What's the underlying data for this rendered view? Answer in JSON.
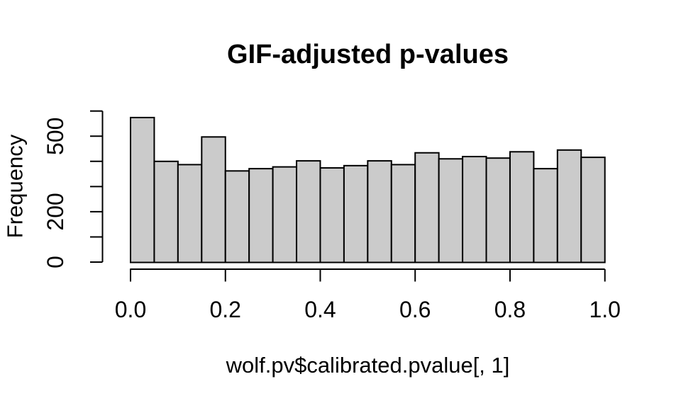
{
  "figure": {
    "background": "#ffffff"
  },
  "chart_data": {
    "type": "bar",
    "subtype": "histogram",
    "title": "GIF-adjusted p-values",
    "xlabel": "wolf.pv$calibrated.pvalue[, 1]",
    "ylabel": "Frequency",
    "xlim": [
      0,
      1
    ],
    "ylim": [
      0,
      600
    ],
    "grid": false,
    "legend": null,
    "bin_width": 0.05,
    "bin_edges": [
      0,
      0.05,
      0.1,
      0.15,
      0.2,
      0.25,
      0.3,
      0.35,
      0.4,
      0.45,
      0.5,
      0.55,
      0.6,
      0.65,
      0.7,
      0.75,
      0.8,
      0.85,
      0.9,
      0.95,
      1
    ],
    "frequencies": [
      574,
      400,
      387,
      497,
      362,
      371,
      378,
      402,
      374,
      383,
      402,
      387,
      434,
      410,
      419,
      413,
      438,
      371,
      445,
      416
    ],
    "x_ticks": {
      "values": [
        0,
        0.2,
        0.4,
        0.6,
        0.8,
        1.0
      ],
      "labels": [
        "0.0",
        "0.2",
        "0.4",
        "0.6",
        "0.8",
        "1.0"
      ]
    },
    "y_ticks": {
      "values": [
        0,
        100,
        200,
        300,
        400,
        500,
        600
      ],
      "labeled": [
        {
          "value": 0,
          "label": "0"
        },
        {
          "value": 200,
          "label": "200"
        },
        {
          "value": 500,
          "label": "500"
        }
      ]
    },
    "colors": {
      "bar_fill": "#cbcbcb",
      "bar_stroke": "#000000",
      "axis": "#000000",
      "text": "#000000"
    }
  }
}
